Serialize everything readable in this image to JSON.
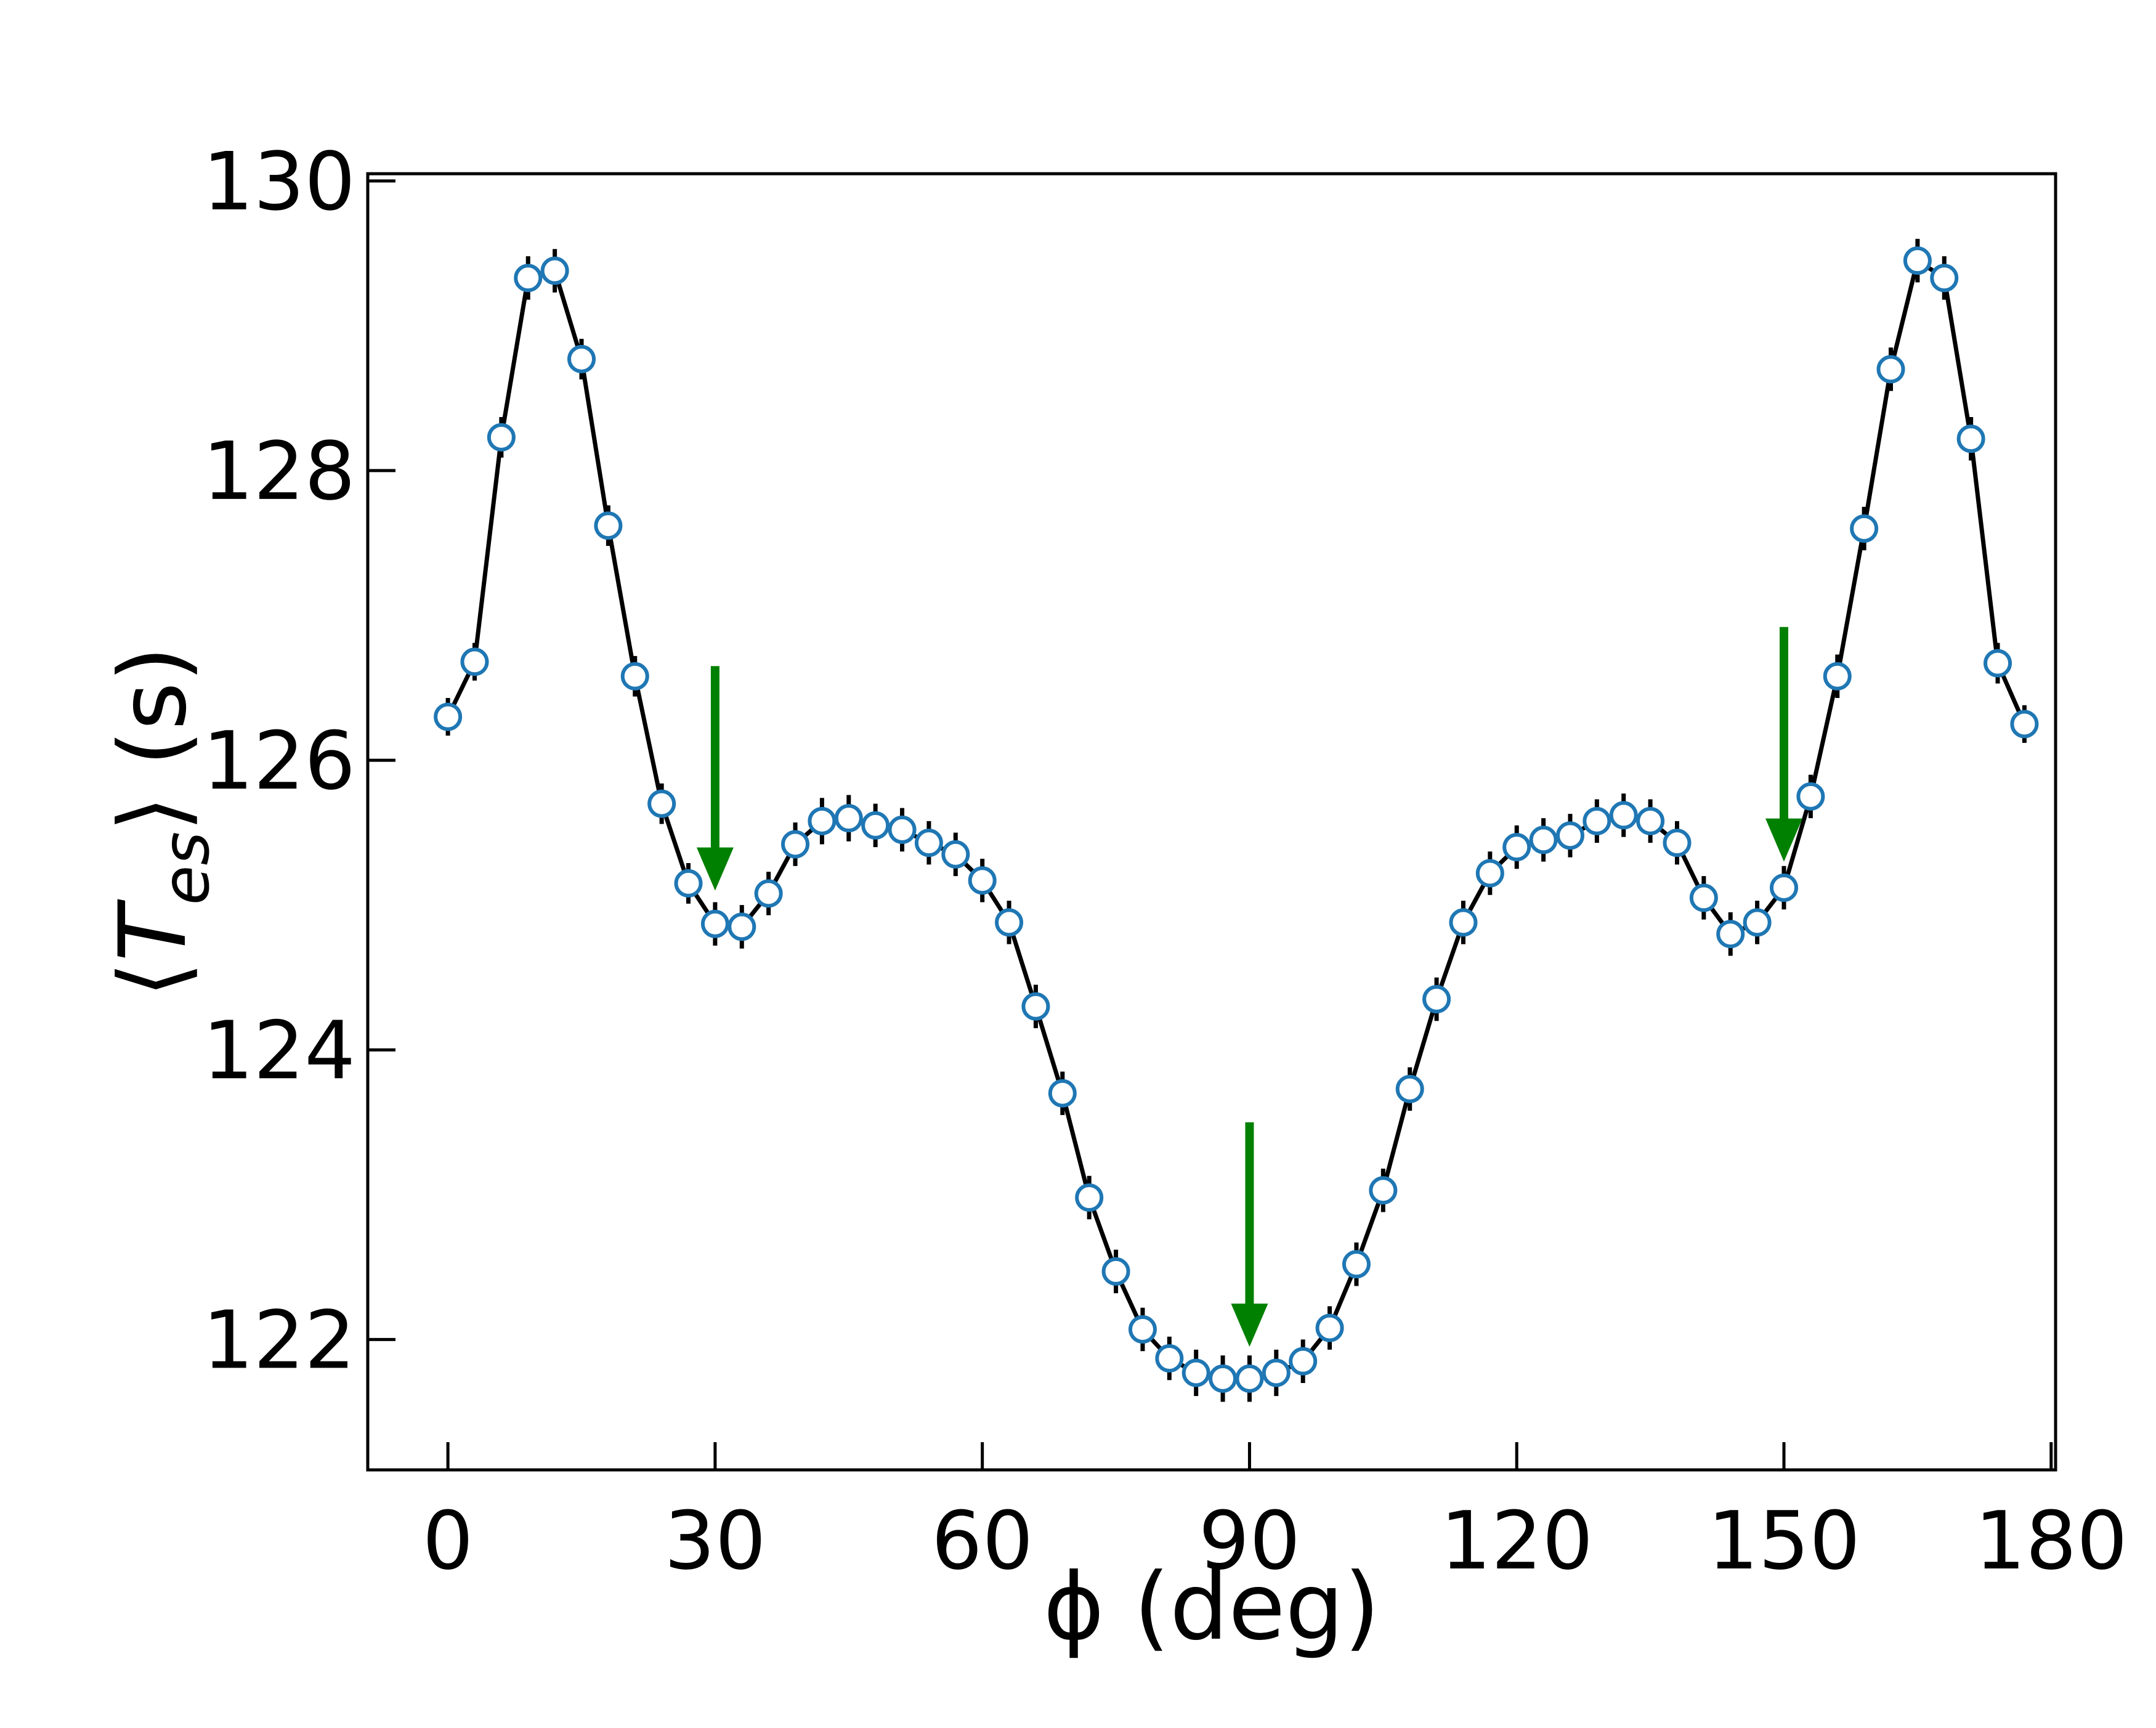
{
  "chart_data": {
    "type": "scatter",
    "xlabel": "ϕ (deg)",
    "ylabel": "⟨T_es⟩ (s)",
    "xlim": [
      -9,
      180.5
    ],
    "ylim": [
      121.1,
      130.05
    ],
    "xticks": [
      0,
      30,
      60,
      90,
      120,
      150,
      180
    ],
    "yticks": [
      122,
      124,
      126,
      128,
      130
    ],
    "grid": false,
    "series": [
      {
        "marker": "open-circle",
        "line": "solid",
        "x": [
          0,
          3,
          6,
          9,
          12,
          15,
          18,
          21,
          24,
          27,
          30,
          33,
          36,
          39,
          42,
          45,
          48,
          51,
          54,
          57,
          60,
          63,
          66,
          69,
          72,
          75,
          78,
          81,
          84,
          87,
          90,
          93,
          96,
          99,
          102,
          105,
          108,
          111,
          114,
          117,
          120,
          123,
          126,
          129,
          132,
          135,
          138,
          141,
          144,
          147,
          150,
          153,
          156,
          159,
          162,
          165,
          168,
          171,
          174,
          177
        ],
        "y": [
          126.3,
          126.68,
          128.23,
          129.33,
          129.38,
          128.77,
          127.62,
          126.58,
          125.7,
          125.15,
          124.87,
          124.85,
          125.08,
          125.42,
          125.58,
          125.6,
          125.55,
          125.52,
          125.43,
          125.35,
          125.17,
          124.88,
          124.3,
          123.7,
          122.98,
          122.47,
          122.07,
          121.87,
          121.77,
          121.73,
          121.73,
          121.77,
          121.85,
          122.08,
          122.52,
          123.03,
          123.73,
          124.35,
          124.88,
          125.22,
          125.4,
          125.45,
          125.48,
          125.58,
          125.62,
          125.58,
          125.43,
          125.05,
          124.8,
          124.88,
          125.12,
          125.75,
          126.58,
          127.6,
          128.7,
          129.45,
          129.33,
          128.22,
          126.67,
          126.25
        ],
        "yerr": [
          0.13,
          0.13,
          0.14,
          0.15,
          0.15,
          0.14,
          0.14,
          0.14,
          0.14,
          0.14,
          0.15,
          0.15,
          0.15,
          0.15,
          0.16,
          0.16,
          0.15,
          0.15,
          0.15,
          0.15,
          0.15,
          0.15,
          0.15,
          0.15,
          0.15,
          0.15,
          0.15,
          0.15,
          0.16,
          0.16,
          0.16,
          0.16,
          0.15,
          0.15,
          0.15,
          0.15,
          0.15,
          0.15,
          0.15,
          0.15,
          0.15,
          0.15,
          0.15,
          0.15,
          0.15,
          0.15,
          0.15,
          0.15,
          0.15,
          0.15,
          0.15,
          0.15,
          0.15,
          0.15,
          0.15,
          0.15,
          0.15,
          0.15,
          0.14,
          0.13
        ]
      }
    ],
    "annotations": [
      {
        "type": "arrow",
        "x": 30,
        "y_top": 126.65,
        "y_tip": 125.1
      },
      {
        "type": "arrow",
        "x": 90,
        "y_top": 123.5,
        "y_tip": 121.95
      },
      {
        "type": "arrow",
        "x": 150,
        "y_top": 126.92,
        "y_tip": 125.3
      }
    ],
    "colors": {
      "marker_edge": "#1f77b4",
      "marker_face": "#ffffff",
      "line": "#000000",
      "arrow": "#008000"
    }
  }
}
